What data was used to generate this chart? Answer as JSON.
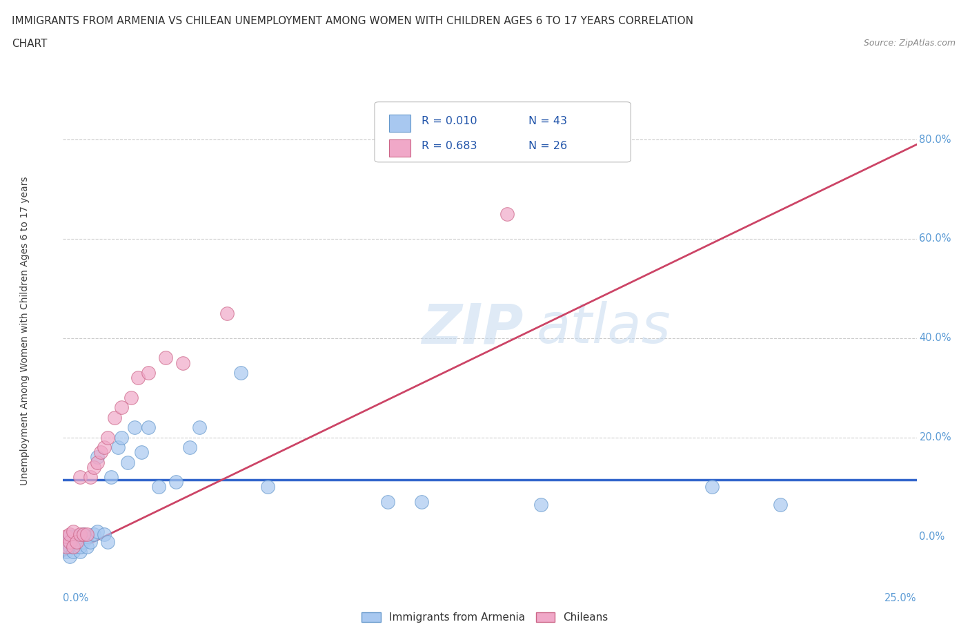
{
  "title_line1": "IMMIGRANTS FROM ARMENIA VS CHILEAN UNEMPLOYMENT AMONG WOMEN WITH CHILDREN AGES 6 TO 17 YEARS CORRELATION",
  "title_line2": "CHART",
  "source": "Source: ZipAtlas.com",
  "xlabel_bottom_left": "0.0%",
  "xlabel_bottom_right": "25.0%",
  "ylabel": "Unemployment Among Women with Children Ages 6 to 17 years",
  "right_ytick_labels": [
    "0.0%",
    "20.0%",
    "40.0%",
    "60.0%",
    "80.0%"
  ],
  "right_ytick_values": [
    0.0,
    0.2,
    0.4,
    0.6,
    0.8
  ],
  "legend_r1": "R = 0.010",
  "legend_n1": "N = 43",
  "legend_r2": "R = 0.683",
  "legend_n2": "N = 26",
  "series1_color": "#a8c8f0",
  "series2_color": "#f0a8c8",
  "series1_edge": "#6699cc",
  "series2_edge": "#cc6688",
  "line1_color": "#3366cc",
  "line2_color": "#cc4466",
  "watermark_zip": "ZIP",
  "watermark_atlas": "atlas",
  "xlim": [
    0.0,
    0.25
  ],
  "ylim": [
    -0.07,
    0.9
  ],
  "background_color": "#ffffff",
  "title_color": "#333333",
  "source_color": "#888888",
  "grid_color": "#cccccc",
  "line1_x": [
    0.0,
    0.25
  ],
  "line1_y": [
    0.115,
    0.115
  ],
  "line2_x": [
    0.0,
    0.25
  ],
  "line2_y": [
    -0.04,
    0.79
  ],
  "scatter1_x": [
    0.001,
    0.001,
    0.002,
    0.002,
    0.002,
    0.003,
    0.003,
    0.003,
    0.003,
    0.004,
    0.004,
    0.004,
    0.005,
    0.005,
    0.005,
    0.006,
    0.006,
    0.007,
    0.007,
    0.008,
    0.009,
    0.01,
    0.01,
    0.012,
    0.013,
    0.014,
    0.016,
    0.017,
    0.019,
    0.021,
    0.023,
    0.025,
    0.028,
    0.033,
    0.037,
    0.04,
    0.052,
    0.06,
    0.095,
    0.105,
    0.14,
    0.19,
    0.21
  ],
  "scatter1_y": [
    -0.03,
    -0.01,
    -0.04,
    -0.02,
    0.0,
    -0.03,
    -0.02,
    -0.01,
    0.0,
    -0.02,
    -0.01,
    0.0,
    -0.03,
    -0.02,
    0.0,
    -0.01,
    0.005,
    -0.02,
    0.0,
    -0.01,
    0.005,
    0.01,
    0.16,
    0.005,
    -0.01,
    0.12,
    0.18,
    0.2,
    0.15,
    0.22,
    0.17,
    0.22,
    0.1,
    0.11,
    0.18,
    0.22,
    0.33,
    0.1,
    0.07,
    0.07,
    0.065,
    0.1,
    0.065
  ],
  "scatter2_x": [
    0.001,
    0.001,
    0.002,
    0.002,
    0.003,
    0.003,
    0.004,
    0.005,
    0.005,
    0.006,
    0.007,
    0.008,
    0.009,
    0.01,
    0.011,
    0.012,
    0.013,
    0.015,
    0.017,
    0.02,
    0.022,
    0.025,
    0.03,
    0.035,
    0.048,
    0.13
  ],
  "scatter2_y": [
    -0.02,
    0.0,
    -0.01,
    0.005,
    -0.02,
    0.01,
    -0.01,
    0.005,
    0.12,
    0.005,
    0.005,
    0.12,
    0.14,
    0.15,
    0.17,
    0.18,
    0.2,
    0.24,
    0.26,
    0.28,
    0.32,
    0.33,
    0.36,
    0.35,
    0.45,
    0.65
  ]
}
